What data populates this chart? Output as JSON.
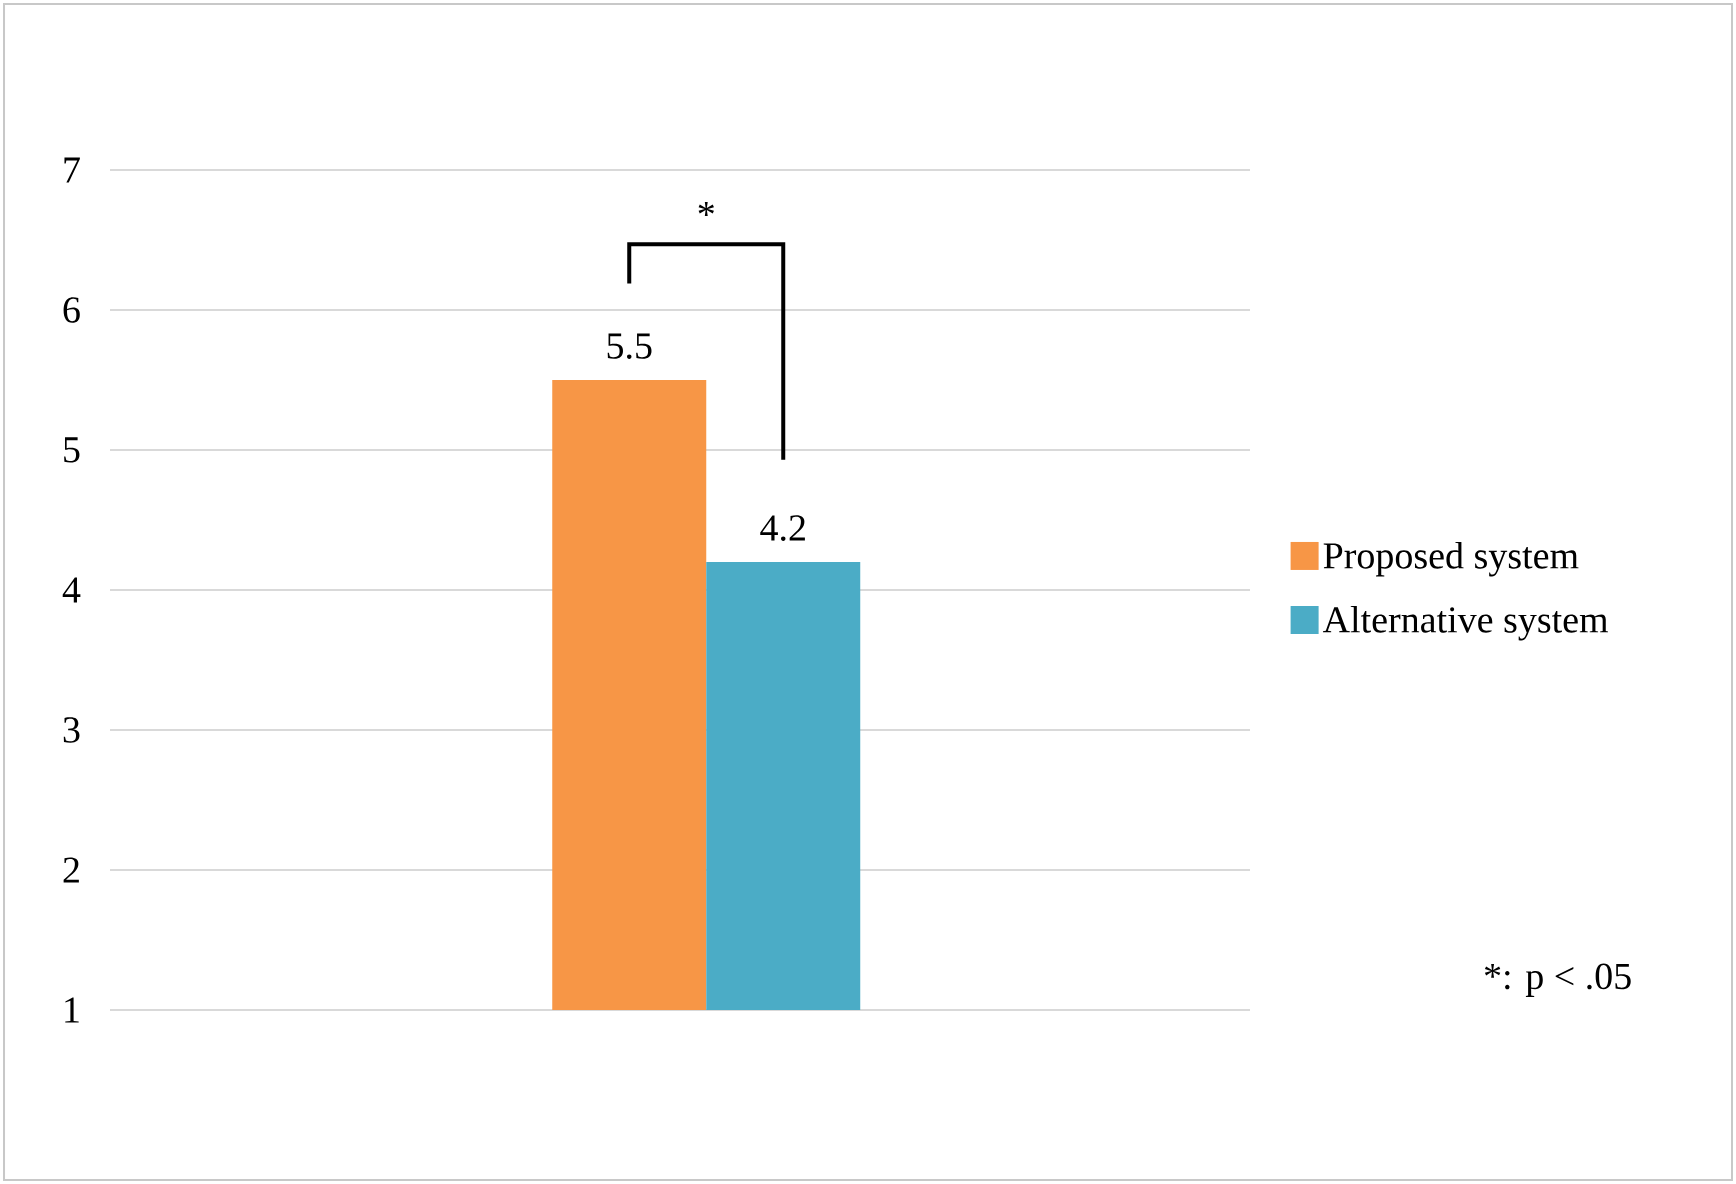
{
  "chart_data": {
    "type": "bar",
    "categories": [
      null
    ],
    "series": [
      {
        "name": "Proposed system",
        "color": "#f79646",
        "values": [
          5.5
        ]
      },
      {
        "name": "Alternative system",
        "color": "#4bacc6",
        "values": [
          4.2
        ]
      }
    ],
    "ylim": [
      1,
      7
    ],
    "yticks": [
      1,
      2,
      3,
      4,
      5,
      6,
      7
    ],
    "grid": "y",
    "legend": "right",
    "data_labels": true,
    "annotations": [
      "*",
      "*: p < .05"
    ]
  }
}
